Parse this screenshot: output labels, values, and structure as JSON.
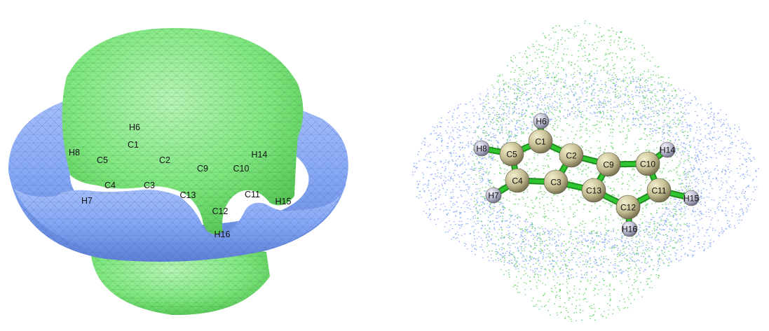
{
  "colors": {
    "positive_lobe": "#7fe87f",
    "negative_lobe": "#86a8f5",
    "bond": "#2fc72f",
    "carbon_atom": "#b9b38a",
    "hydrogen_atom": "#b4b4cc"
  },
  "left_panel": {
    "labels": [
      "H6",
      "C1",
      "H8",
      "C5",
      "C2",
      "H14",
      "C9",
      "C10",
      "C4",
      "C3",
      "C13",
      "C11",
      "H7",
      "H15",
      "C12",
      "H16"
    ]
  },
  "right_panel": {
    "atoms": [
      "H6",
      "C1",
      "H8",
      "C5",
      "C2",
      "C9",
      "C10",
      "H14",
      "C4",
      "C3",
      "C13",
      "C11",
      "H7",
      "H15",
      "C12",
      "H16"
    ]
  }
}
